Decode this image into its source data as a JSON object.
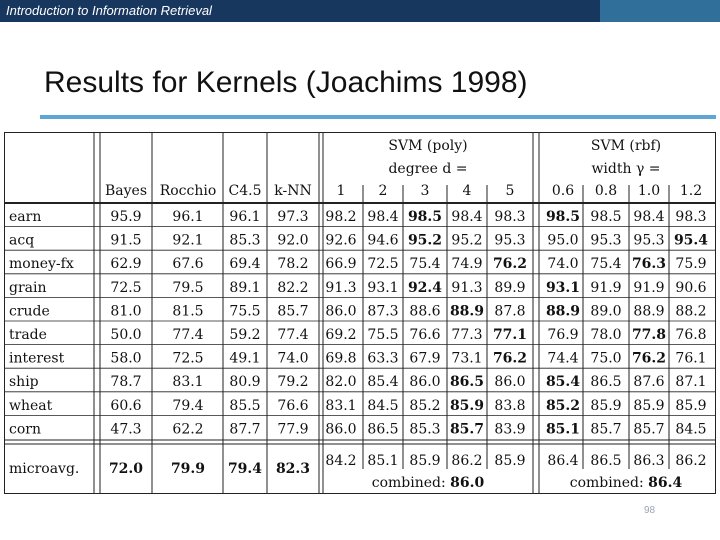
{
  "header": {
    "course": "Introduction to Information Retrieval"
  },
  "slide": {
    "title": "Results for Kernels (Joachims 1998)",
    "page_number": "98"
  },
  "table": {
    "poly_label": "SVM (poly)",
    "poly_param": "degree d =",
    "rbf_label": "SVM (rbf)",
    "rbf_param": "width γ =",
    "columns": [
      "Bayes",
      "Rocchio",
      "C4.5",
      "k-NN",
      "1",
      "2",
      "3",
      "4",
      "5",
      "0.6",
      "0.8",
      "1.0",
      "1.2"
    ],
    "rows": [
      {
        "label": "earn",
        "values": [
          "95.9",
          "96.1",
          "96.1",
          "97.3",
          "98.2",
          "98.4",
          "98.5",
          "98.4",
          "98.3",
          "98.5",
          "98.5",
          "98.4",
          "98.3"
        ],
        "bold": [
          6,
          9
        ]
      },
      {
        "label": "acq",
        "values": [
          "91.5",
          "92.1",
          "85.3",
          "92.0",
          "92.6",
          "94.6",
          "95.2",
          "95.2",
          "95.3",
          "95.0",
          "95.3",
          "95.3",
          "95.4"
        ],
        "bold": [
          6,
          12
        ]
      },
      {
        "label": "money-fx",
        "values": [
          "62.9",
          "67.6",
          "69.4",
          "78.2",
          "66.9",
          "72.5",
          "75.4",
          "74.9",
          "76.2",
          "74.0",
          "75.4",
          "76.3",
          "75.9"
        ],
        "bold": [
          8,
          11
        ]
      },
      {
        "label": "grain",
        "values": [
          "72.5",
          "79.5",
          "89.1",
          "82.2",
          "91.3",
          "93.1",
          "92.4",
          "91.3",
          "89.9",
          "93.1",
          "91.9",
          "91.9",
          "90.6"
        ],
        "bold": [
          6,
          9
        ]
      },
      {
        "label": "crude",
        "values": [
          "81.0",
          "81.5",
          "75.5",
          "85.7",
          "86.0",
          "87.3",
          "88.6",
          "88.9",
          "87.8",
          "88.9",
          "89.0",
          "88.9",
          "88.2"
        ],
        "bold": [
          7,
          9
        ]
      },
      {
        "label": "trade",
        "values": [
          "50.0",
          "77.4",
          "59.2",
          "77.4",
          "69.2",
          "75.5",
          "76.6",
          "77.3",
          "77.1",
          "76.9",
          "78.0",
          "77.8",
          "76.8"
        ],
        "bold": [
          8,
          11
        ]
      },
      {
        "label": "interest",
        "values": [
          "58.0",
          "72.5",
          "49.1",
          "74.0",
          "69.8",
          "63.3",
          "67.9",
          "73.1",
          "76.2",
          "74.4",
          "75.0",
          "76.2",
          "76.1"
        ],
        "bold": [
          8,
          11
        ]
      },
      {
        "label": "ship",
        "values": [
          "78.7",
          "83.1",
          "80.9",
          "79.2",
          "82.0",
          "85.4",
          "86.0",
          "86.5",
          "86.0",
          "85.4",
          "86.5",
          "87.6",
          "87.1"
        ],
        "bold": [
          7,
          9
        ]
      },
      {
        "label": "wheat",
        "values": [
          "60.6",
          "79.4",
          "85.5",
          "76.6",
          "83.1",
          "84.5",
          "85.2",
          "85.9",
          "83.8",
          "85.2",
          "85.9",
          "85.9",
          "85.9"
        ],
        "bold": [
          7,
          9
        ]
      },
      {
        "label": "corn",
        "values": [
          "47.3",
          "62.2",
          "87.7",
          "77.9",
          "86.0",
          "86.5",
          "85.3",
          "85.7",
          "83.9",
          "85.1",
          "85.7",
          "85.7",
          "84.5"
        ],
        "bold": [
          7,
          9
        ]
      }
    ],
    "microavg": {
      "label": "microavg.",
      "values": [
        "72.0",
        "79.9",
        "79.4",
        "82.3"
      ],
      "poly_values": [
        "84.2",
        "85.1",
        "85.9",
        "86.2",
        "85.9"
      ],
      "rbf_values": [
        "86.4",
        "86.5",
        "86.3",
        "86.2"
      ],
      "poly_combined": "combined: 86.0",
      "rbf_combined": "combined: 86.4"
    }
  }
}
